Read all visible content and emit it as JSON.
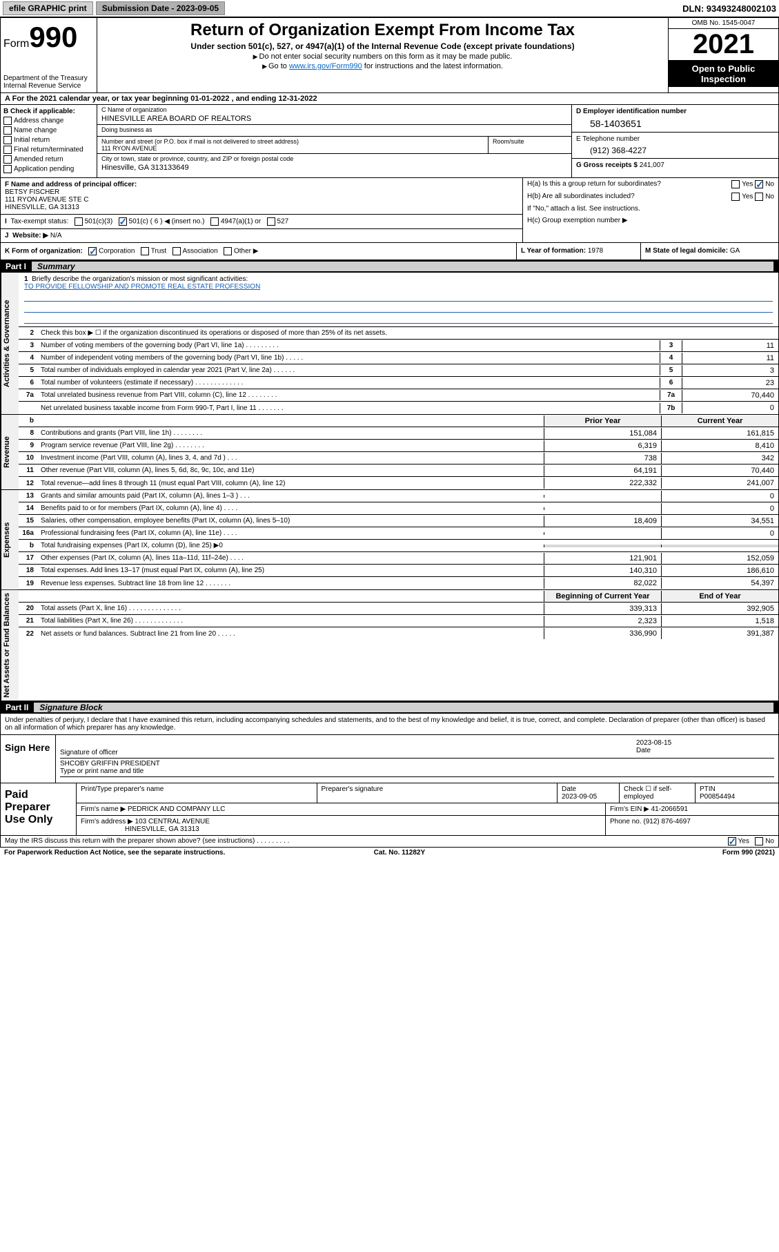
{
  "topbar": {
    "efile": "efile GRAPHIC print",
    "sub_label": "Submission Date - 2023-09-05",
    "dln": "DLN: 93493248002103"
  },
  "header": {
    "form_label": "Form",
    "form_no": "990",
    "dept": "Department of the Treasury",
    "irs": "Internal Revenue Service",
    "title": "Return of Organization Exempt From Income Tax",
    "sub1": "Under section 501(c), 527, or 4947(a)(1) of the Internal Revenue Code (except private foundations)",
    "sub2": "Do not enter social security numbers on this form as it may be made public.",
    "sub3_pre": "Go to ",
    "sub3_link": "www.irs.gov/Form990",
    "sub3_post": " for instructions and the latest information.",
    "omb": "OMB No. 1545-0047",
    "year": "2021",
    "open": "Open to Public Inspection"
  },
  "rowA": "For the 2021 calendar year, or tax year beginning 01-01-2022   , and ending 12-31-2022",
  "colB": {
    "hdr": "B Check if applicable:",
    "items": [
      "Address change",
      "Name change",
      "Initial return",
      "Final return/terminated",
      "Amended return",
      "Application pending"
    ]
  },
  "colC": {
    "name_label": "C Name of organization",
    "name": "HINESVILLE AREA BOARD OF REALTORS",
    "dba_label": "Doing business as",
    "dba": "",
    "addr_label": "Number and street (or P.O. box if mail is not delivered to street address)",
    "addr": "111 RYON AVENUE",
    "room_label": "Room/suite",
    "city_label": "City or town, state or province, country, and ZIP or foreign postal code",
    "city": "Hinesville, GA  313133649"
  },
  "colD": {
    "ein_label": "D Employer identification number",
    "ein": "58-1403651",
    "tel_label": "E Telephone number",
    "tel": "(912) 368-4227",
    "gross_label": "G Gross receipts $",
    "gross": "241,007"
  },
  "rowF": {
    "label": "F  Name and address of principal officer:",
    "name": "BETSY FISCHER",
    "addr1": "111 RYON AVENUE STE C",
    "addr2": "HINESVILLE, GA  31313"
  },
  "rowH": {
    "ha": "H(a)  Is this a group return for subordinates?",
    "ha_yes": "Yes",
    "ha_no": "No",
    "hb": "H(b)  Are all subordinates included?",
    "hb_note": "If \"No,\" attach a list. See instructions.",
    "hc": "H(c)  Group exemption number ▶"
  },
  "rowI": {
    "label": "Tax-exempt status:",
    "opt1": "501(c)(3)",
    "opt2": "501(c) ( 6 ) ◀ (insert no.)",
    "opt3": "4947(a)(1) or",
    "opt4": "527"
  },
  "rowJ": {
    "label": "Website: ▶",
    "val": "N/A"
  },
  "rowK": {
    "label": "K Form of organization:",
    "opts": [
      "Corporation",
      "Trust",
      "Association",
      "Other ▶"
    ],
    "year_label": "L Year of formation:",
    "year": "1978",
    "state_label": "M State of legal domicile:",
    "state": "GA"
  },
  "partI": {
    "label": "Part I",
    "title": "Summary"
  },
  "summary": {
    "side_labels": [
      "Activities & Governance",
      "Revenue",
      "Expenses",
      "Net Assets or Fund Balances"
    ],
    "line1_label": "Briefly describe the organization's mission or most significant activities:",
    "line1_val": "TO PROVIDE FELLOWSHIP AND PROMOTE REAL ESTATE PROFESSION",
    "line2": "Check this box ▶ ☐  if the organization discontinued its operations or disposed of more than 25% of its net assets.",
    "gov_rows": [
      {
        "n": "3",
        "txt": "Number of voting members of the governing body (Part VI, line 1a)   .    .    .    .    .    .    .    .    .",
        "box": "3",
        "val": "11"
      },
      {
        "n": "4",
        "txt": "Number of independent voting members of the governing body (Part VI, line 1b)   .    .    .    .    .",
        "box": "4",
        "val": "11"
      },
      {
        "n": "5",
        "txt": "Total number of individuals employed in calendar year 2021 (Part V, line 2a)   .    .    .    .    .    .",
        "box": "5",
        "val": "3"
      },
      {
        "n": "6",
        "txt": "Total number of volunteers (estimate if necessary)   .    .    .    .    .    .    .    .    .    .    .    .    .",
        "box": "6",
        "val": "23"
      },
      {
        "n": "7a",
        "txt": "Total unrelated business revenue from Part VIII, column (C), line 12   .    .    .    .    .    .    .    .",
        "box": "7a",
        "val": "70,440"
      },
      {
        "n": "",
        "txt": "Net unrelated business taxable income from Form 990-T, Part I, line 11   .    .    .    .    .    .    .",
        "box": "7b",
        "val": "0"
      }
    ],
    "col_hdr": {
      "b": "b",
      "prior": "Prior Year",
      "curr": "Current Year"
    },
    "rev_rows": [
      {
        "n": "8",
        "txt": "Contributions and grants (Part VIII, line 1h)   .    .    .    .    .    .    .    .",
        "prior": "151,084",
        "curr": "161,815"
      },
      {
        "n": "9",
        "txt": "Program service revenue (Part VIII, line 2g)   .    .    .    .    .    .    .    .",
        "prior": "6,319",
        "curr": "8,410"
      },
      {
        "n": "10",
        "txt": "Investment income (Part VIII, column (A), lines 3, 4, and 7d )   .    .    .",
        "prior": "738",
        "curr": "342"
      },
      {
        "n": "11",
        "txt": "Other revenue (Part VIII, column (A), lines 5, 6d, 8c, 9c, 10c, and 11e)",
        "prior": "64,191",
        "curr": "70,440"
      },
      {
        "n": "12",
        "txt": "Total revenue—add lines 8 through 11 (must equal Part VIII, column (A), line 12)",
        "prior": "222,332",
        "curr": "241,007"
      }
    ],
    "exp_rows": [
      {
        "n": "13",
        "txt": "Grants and similar amounts paid (Part IX, column (A), lines 1–3 )   .    .    .",
        "prior": "",
        "curr": "0"
      },
      {
        "n": "14",
        "txt": "Benefits paid to or for members (Part IX, column (A), line 4)   .    .    .    .",
        "prior": "",
        "curr": "0"
      },
      {
        "n": "15",
        "txt": "Salaries, other compensation, employee benefits (Part IX, column (A), lines 5–10)",
        "prior": "18,409",
        "curr": "34,551"
      },
      {
        "n": "16a",
        "txt": "Professional fundraising fees (Part IX, column (A), line 11e)   .    .    .    .",
        "prior": "",
        "curr": "0"
      },
      {
        "n": "b",
        "txt": "Total fundraising expenses (Part IX, column (D), line 25) ▶0",
        "prior": "",
        "curr": "",
        "shaded": true
      },
      {
        "n": "17",
        "txt": "Other expenses (Part IX, column (A), lines 11a–11d, 11f–24e)   .    .    .    .",
        "prior": "121,901",
        "curr": "152,059"
      },
      {
        "n": "18",
        "txt": "Total expenses. Add lines 13–17 (must equal Part IX, column (A), line 25)",
        "prior": "140,310",
        "curr": "186,610"
      },
      {
        "n": "19",
        "txt": "Revenue less expenses. Subtract line 18 from line 12   .    .    .    .    .    .    .",
        "prior": "82,022",
        "curr": "54,397"
      }
    ],
    "net_hdr": {
      "prior": "Beginning of Current Year",
      "curr": "End of Year"
    },
    "net_rows": [
      {
        "n": "20",
        "txt": "Total assets (Part X, line 16)   .    .    .    .    .    .    .    .    .    .    .    .    .    .",
        "prior": "339,313",
        "curr": "392,905"
      },
      {
        "n": "21",
        "txt": "Total liabilities (Part X, line 26)   .    .    .    .    .    .    .    .    .    .    .    .    .",
        "prior": "2,323",
        "curr": "1,518"
      },
      {
        "n": "22",
        "txt": "Net assets or fund balances. Subtract line 21 from line 20   .    .    .    .    .",
        "prior": "336,990",
        "curr": "391,387"
      }
    ]
  },
  "partII": {
    "label": "Part II",
    "title": "Signature Block"
  },
  "sig": {
    "intro": "Under penalties of perjury, I declare that I have examined this return, including accompanying schedules and statements, and to the best of my knowledge and belief, it is true, correct, and complete. Declaration of preparer (other than officer) is based on all information of which preparer has any knowledge.",
    "sign_here": "Sign Here",
    "sig_of_officer": "Signature of officer",
    "sig_date": "2023-08-15",
    "date_label": "Date",
    "officer": "SHCOBY GRIFFIN  PRESIDENT",
    "type_label": "Type or print name and title",
    "paid_label": "Paid Preparer Use Only",
    "prep_name_label": "Print/Type preparer's name",
    "prep_sig_label": "Preparer's signature",
    "prep_date_label": "Date",
    "prep_date": "2023-09-05",
    "check_if": "Check ☐ if self-employed",
    "ptin_label": "PTIN",
    "ptin": "P00854494",
    "firm_name_label": "Firm's name    ▶",
    "firm_name": "PEDRICK AND COMPANY LLC",
    "firm_ein_label": "Firm's EIN ▶",
    "firm_ein": "41-2066591",
    "firm_addr_label": "Firm's address ▶",
    "firm_addr1": "103 CENTRAL AVENUE",
    "firm_addr_city": "HINESVILLE, GA  31313",
    "phone_label": "Phone no.",
    "phone": "(912) 876-4697"
  },
  "footer": {
    "discuss": "May the IRS discuss this return with the preparer shown above? (see instructions)   .    .    .    .    .    .    .    .    .",
    "yes": "Yes",
    "no": "No",
    "pra": "For Paperwork Reduction Act Notice, see the separate instructions.",
    "cat": "Cat. No. 11282Y",
    "form": "Form 990 (2021)"
  }
}
